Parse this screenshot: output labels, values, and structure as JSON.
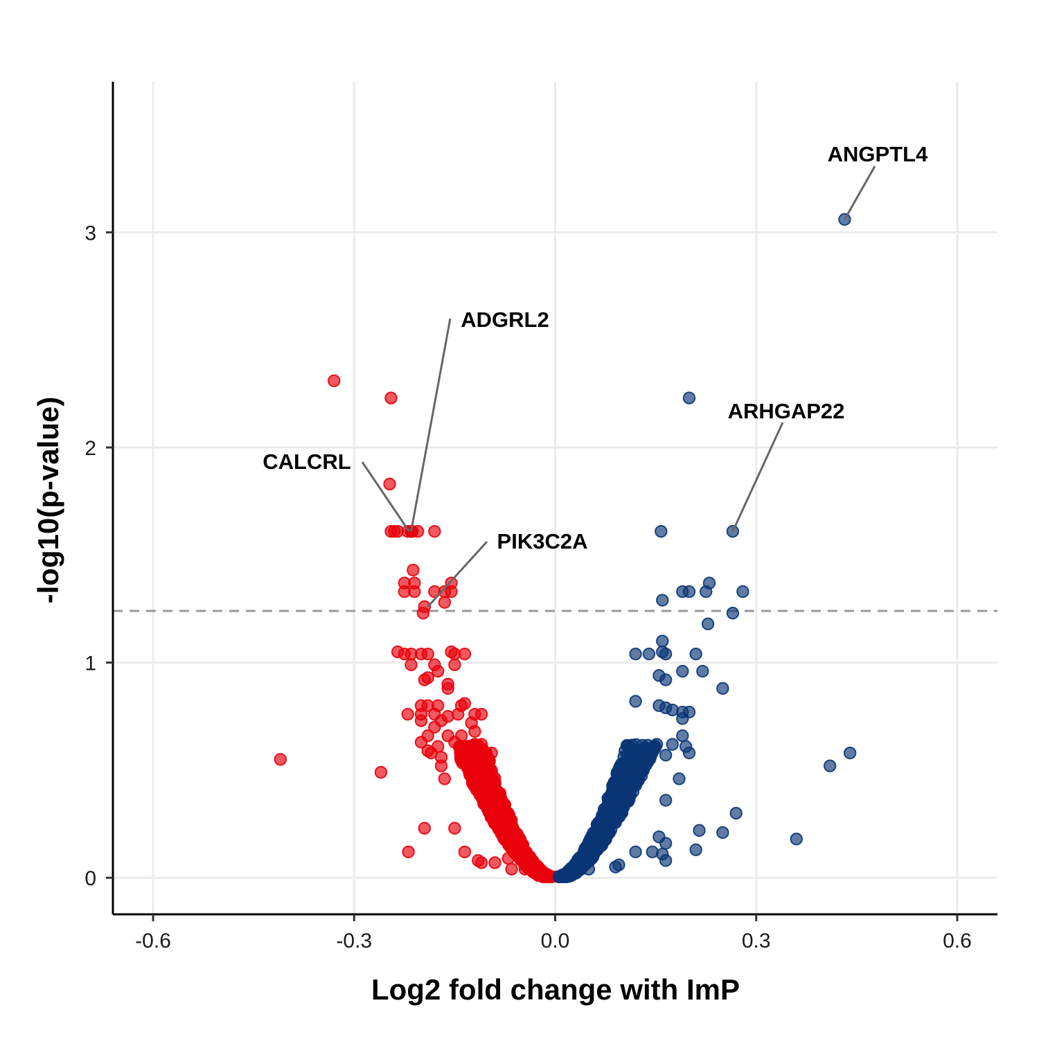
{
  "chart_data": {
    "type": "scatter",
    "title": "",
    "xlabel": "Log2 fold change with ImP",
    "ylabel": "-log10(p-value)",
    "xlim": [
      -0.66,
      0.66
    ],
    "ylim": [
      -0.17,
      3.7
    ],
    "x_ticks": [
      -0.6,
      -0.3,
      0.0,
      0.3,
      0.6
    ],
    "x_tick_labels": [
      "-0.6",
      "-0.3",
      "0.0",
      "0.3",
      "0.6"
    ],
    "y_ticks": [
      0,
      1,
      2,
      3
    ],
    "y_tick_labels": [
      "0",
      "1",
      "2",
      "3"
    ],
    "grid": true,
    "legend": "none",
    "threshold_line": {
      "y": 1.24,
      "style": "dashed",
      "color": "#999999"
    },
    "colors": {
      "negative": "#e8000b",
      "positive": "#0a3575"
    },
    "series": [
      {
        "color": "#e8000b",
        "points": [
          [
            -0.41,
            0.55
          ],
          [
            -0.26,
            0.49
          ],
          [
            -0.33,
            2.31
          ],
          [
            -0.245,
            2.23
          ],
          [
            -0.247,
            1.83
          ],
          [
            -0.245,
            1.61
          ],
          [
            -0.24,
            1.61
          ],
          [
            -0.235,
            1.61
          ],
          [
            -0.22,
            1.61
          ],
          [
            -0.215,
            1.61
          ],
          [
            -0.213,
            1.61
          ],
          [
            -0.205,
            1.61
          ],
          [
            -0.18,
            1.61
          ],
          [
            -0.212,
            1.43
          ],
          [
            -0.225,
            1.37
          ],
          [
            -0.21,
            1.37
          ],
          [
            -0.155,
            1.37
          ],
          [
            -0.225,
            1.33
          ],
          [
            -0.21,
            1.33
          ],
          [
            -0.18,
            1.33
          ],
          [
            -0.165,
            1.33
          ],
          [
            -0.155,
            1.33
          ],
          [
            -0.165,
            1.28
          ],
          [
            -0.195,
            1.26
          ],
          [
            -0.197,
            1.23
          ],
          [
            -0.235,
            1.05
          ],
          [
            -0.225,
            1.04
          ],
          [
            -0.215,
            1.04
          ],
          [
            -0.2,
            1.04
          ],
          [
            -0.19,
            1.04
          ],
          [
            -0.155,
            1.05
          ],
          [
            -0.15,
            1.04
          ],
          [
            -0.135,
            1.04
          ],
          [
            -0.215,
            0.99
          ],
          [
            -0.18,
            0.99
          ],
          [
            -0.15,
            0.99
          ],
          [
            -0.175,
            0.96
          ],
          [
            -0.195,
            0.92
          ],
          [
            -0.19,
            0.93
          ],
          [
            -0.16,
            0.9
          ],
          [
            -0.16,
            0.88
          ],
          [
            -0.14,
            0.8
          ],
          [
            -0.135,
            0.81
          ],
          [
            -0.175,
            0.8
          ],
          [
            -0.19,
            0.8
          ],
          [
            -0.2,
            0.8
          ],
          [
            -0.22,
            0.76
          ],
          [
            -0.2,
            0.76
          ],
          [
            -0.18,
            0.76
          ],
          [
            -0.16,
            0.75
          ],
          [
            -0.145,
            0.76
          ],
          [
            -0.12,
            0.76
          ],
          [
            -0.11,
            0.76
          ],
          [
            -0.2,
            0.73
          ],
          [
            -0.17,
            0.73
          ],
          [
            -0.125,
            0.72
          ],
          [
            -0.18,
            0.7
          ],
          [
            -0.12,
            0.68
          ],
          [
            -0.19,
            0.66
          ],
          [
            -0.16,
            0.66
          ],
          [
            -0.14,
            0.66
          ],
          [
            -0.2,
            0.63
          ],
          [
            -0.175,
            0.61
          ],
          [
            -0.15,
            0.63
          ],
          [
            -0.12,
            0.62
          ],
          [
            -0.11,
            0.62
          ],
          [
            -0.185,
            0.58
          ],
          [
            -0.17,
            0.56
          ],
          [
            -0.095,
            0.58
          ],
          [
            -0.19,
            0.59
          ],
          [
            -0.17,
            0.52
          ],
          [
            -0.165,
            0.46
          ],
          [
            -0.195,
            0.23
          ],
          [
            -0.15,
            0.23
          ],
          [
            -0.219,
            0.12
          ],
          [
            -0.135,
            0.12
          ],
          [
            -0.115,
            0.08
          ],
          [
            -0.11,
            0.07
          ],
          [
            -0.09,
            0.07
          ],
          [
            -0.07,
            0.09
          ],
          [
            -0.065,
            0.04
          ],
          [
            -0.045,
            0.04
          ]
        ]
      },
      {
        "color": "#0a3575",
        "points": [
          [
            0.432,
            3.06
          ],
          [
            0.2,
            2.23
          ],
          [
            0.265,
            1.61
          ],
          [
            0.158,
            1.61
          ],
          [
            0.23,
            1.37
          ],
          [
            0.2,
            1.33
          ],
          [
            0.19,
            1.33
          ],
          [
            0.225,
            1.33
          ],
          [
            0.28,
            1.33
          ],
          [
            0.16,
            1.29
          ],
          [
            0.265,
            1.23
          ],
          [
            0.228,
            1.18
          ],
          [
            0.16,
            1.1
          ],
          [
            0.16,
            1.05
          ],
          [
            0.165,
            1.04
          ],
          [
            0.12,
            1.04
          ],
          [
            0.14,
            1.04
          ],
          [
            0.21,
            1.04
          ],
          [
            0.155,
            0.94
          ],
          [
            0.165,
            0.92
          ],
          [
            0.19,
            0.96
          ],
          [
            0.22,
            0.96
          ],
          [
            0.25,
            0.88
          ],
          [
            0.12,
            0.82
          ],
          [
            0.155,
            0.8
          ],
          [
            0.165,
            0.79
          ],
          [
            0.175,
            0.78
          ],
          [
            0.19,
            0.77
          ],
          [
            0.2,
            0.77
          ],
          [
            0.19,
            0.74
          ],
          [
            0.19,
            0.66
          ],
          [
            0.195,
            0.61
          ],
          [
            0.2,
            0.58
          ],
          [
            0.175,
            0.62
          ],
          [
            0.165,
            0.57
          ],
          [
            0.41,
            0.52
          ],
          [
            0.44,
            0.58
          ],
          [
            0.27,
            0.3
          ],
          [
            0.36,
            0.18
          ],
          [
            0.25,
            0.21
          ],
          [
            0.215,
            0.22
          ],
          [
            0.21,
            0.13
          ],
          [
            0.155,
            0.19
          ],
          [
            0.165,
            0.16
          ],
          [
            0.145,
            0.12
          ],
          [
            0.16,
            0.11
          ],
          [
            0.165,
            0.08
          ],
          [
            0.12,
            0.12
          ],
          [
            0.165,
            0.36
          ],
          [
            0.185,
            0.46
          ],
          [
            0.09,
            0.05
          ],
          [
            0.095,
            0.06
          ],
          [
            0.05,
            0.04
          ]
        ]
      }
    ],
    "annotations": [
      {
        "text": "ANGPTL4",
        "point": [
          0.432,
          3.06
        ]
      },
      {
        "text": "ADGRL2",
        "point": [
          -0.215,
          1.61
        ]
      },
      {
        "text": "CALCRL",
        "point": [
          -0.218,
          1.61
        ]
      },
      {
        "text": "ARHGAP22",
        "point": [
          0.265,
          1.61
        ]
      },
      {
        "text": "PIK3C2A",
        "point": [
          -0.19,
          1.26
        ]
      }
    ]
  }
}
